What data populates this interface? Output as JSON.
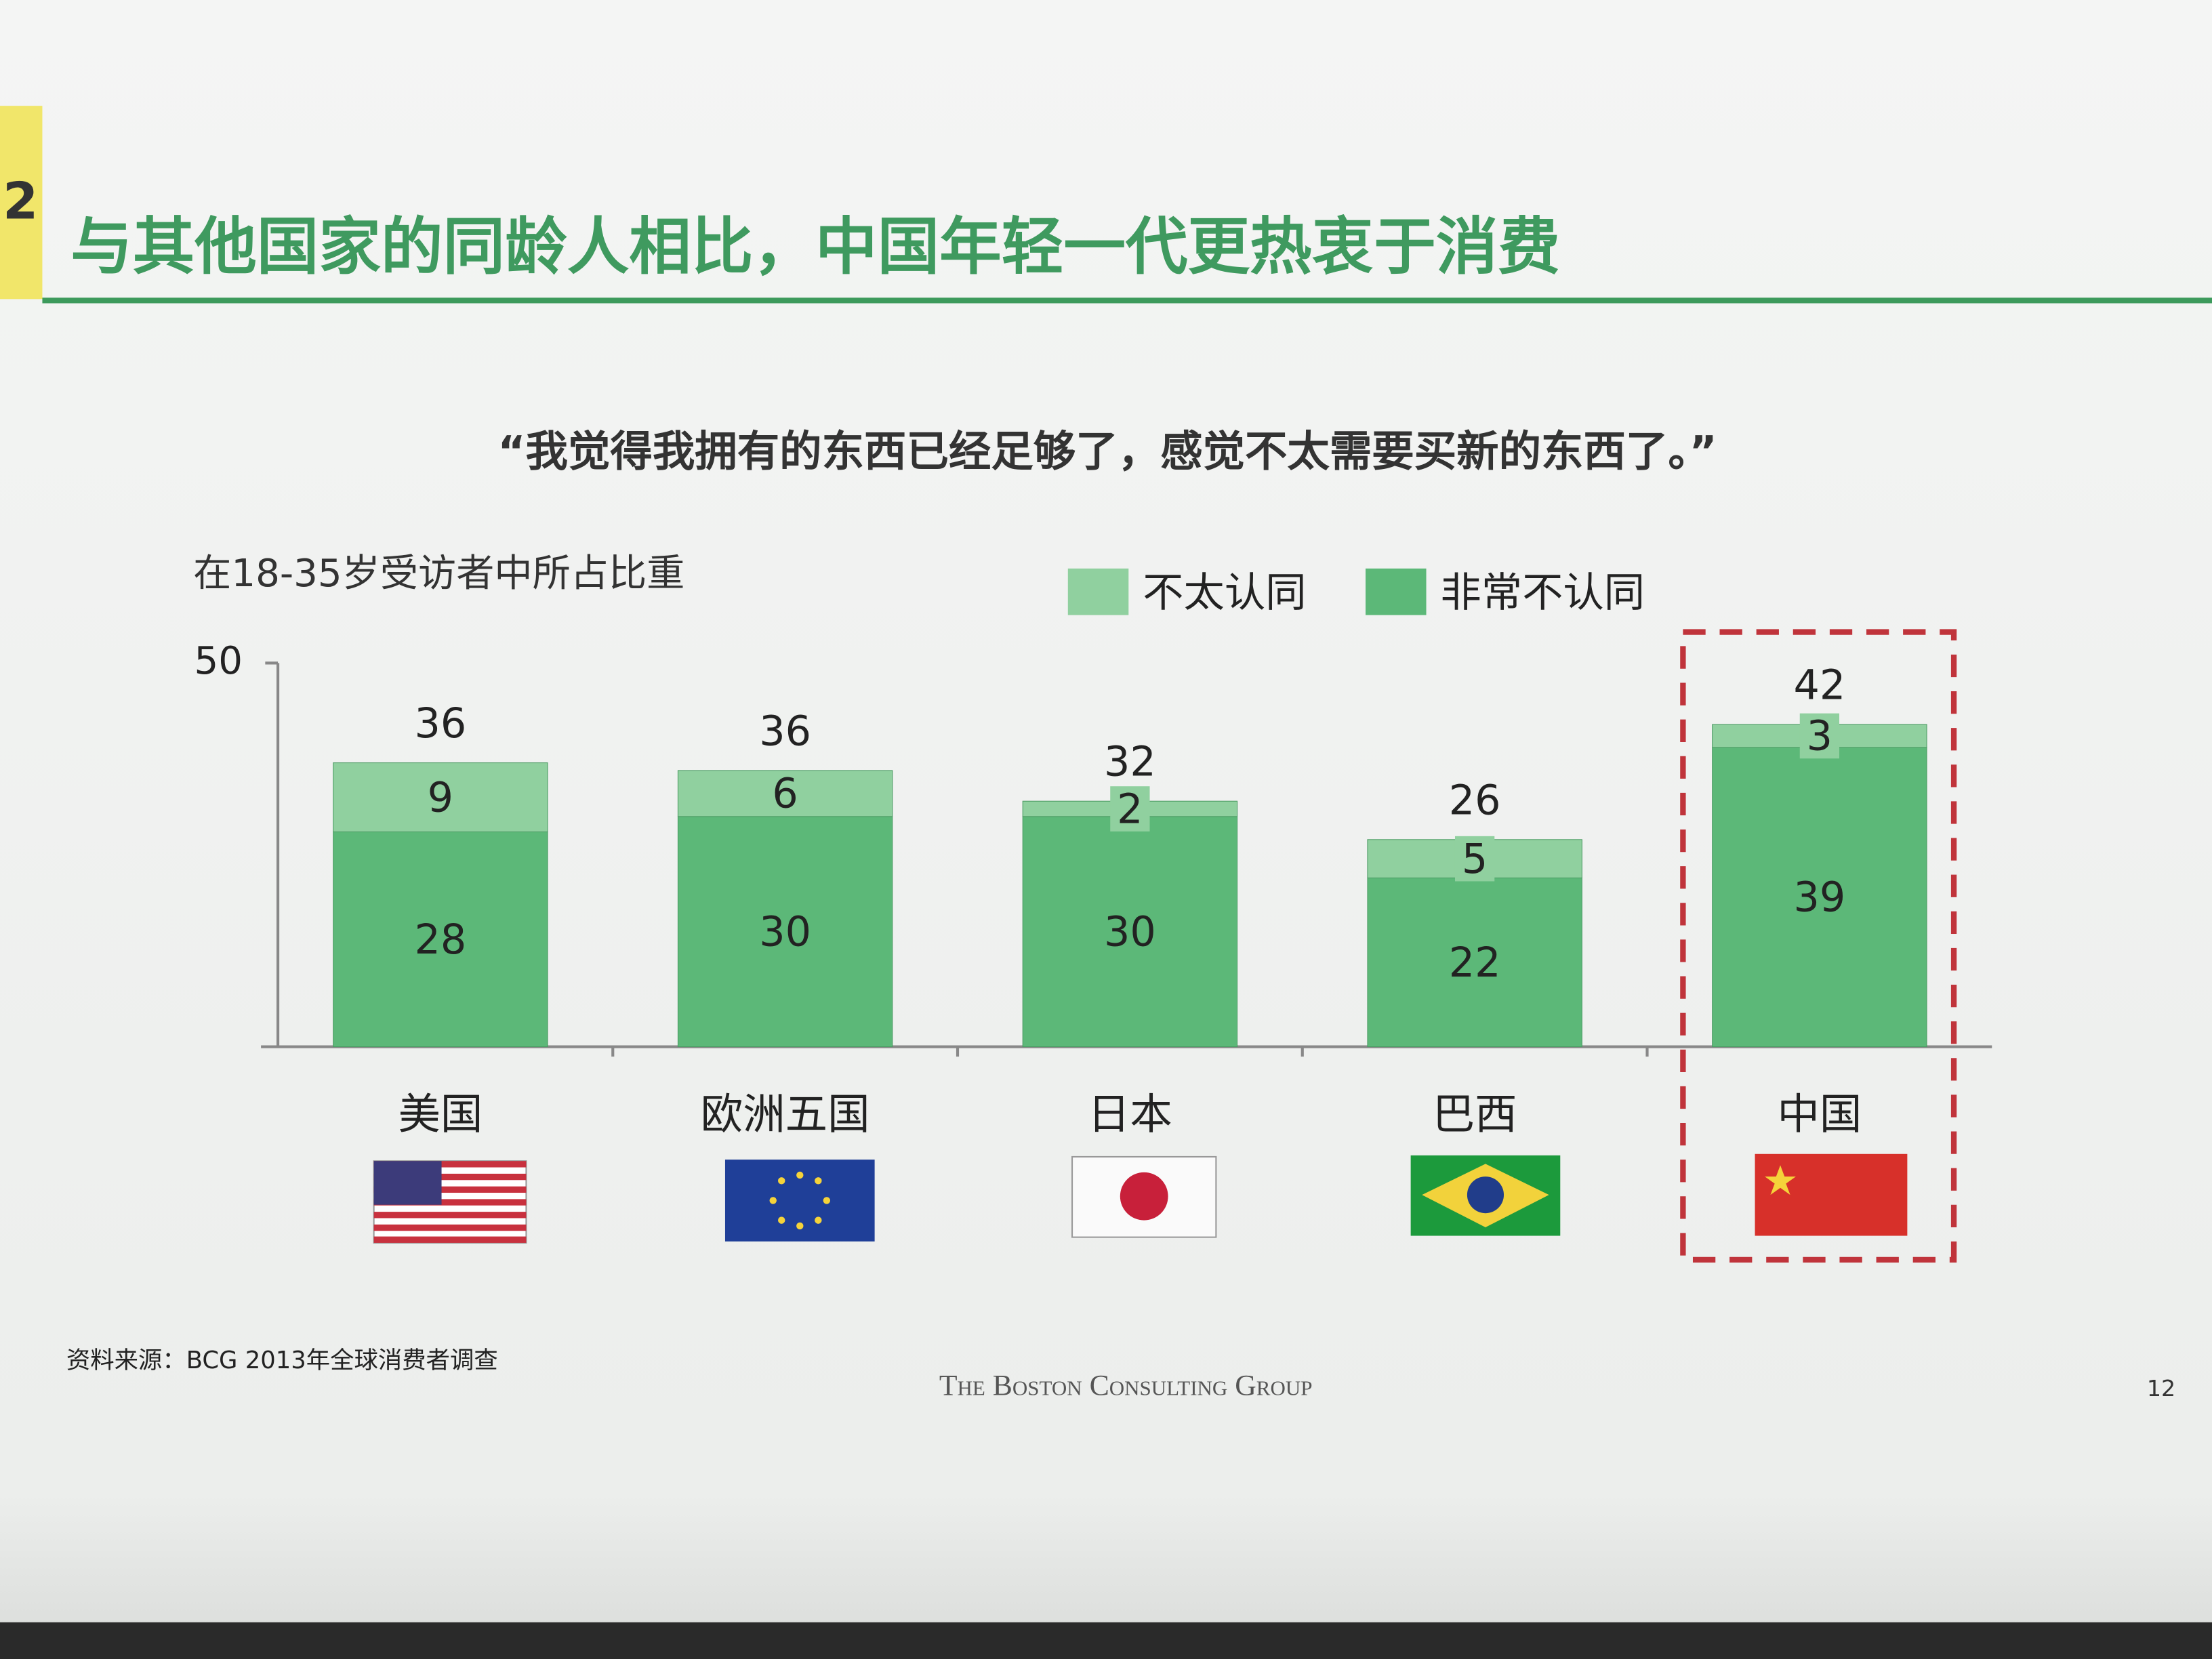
{
  "section": "2",
  "chart_data": {
    "type": "stacked-bar",
    "title": "与其他国家的同龄人相比，中国年轻一代更热衷于消费",
    "subtitle": "“我觉得我拥有的东西已经足够了，感觉不太需要买新的东西了。”",
    "y_label": "在18-35岁受访者中所占比重",
    "categories": [
      "美国",
      "欧洲五国",
      "日本",
      "巴西",
      "中国"
    ],
    "series": [
      {
        "name": "非常不认同",
        "color": "#5cb878",
        "values": [
          28,
          30,
          30,
          22,
          39
        ]
      },
      {
        "name": "不太认同",
        "color": "#90d09f",
        "values": [
          9,
          6,
          2,
          5,
          3
        ]
      }
    ],
    "totals": [
      36,
      36,
      32,
      26,
      42
    ],
    "ylim": [
      0,
      50
    ],
    "yticks": [
      50
    ]
  },
  "footer": {
    "source": "资料来源：BCG 2013年全球消费者调查",
    "company": "The Boston Consulting Group",
    "page": "12"
  }
}
